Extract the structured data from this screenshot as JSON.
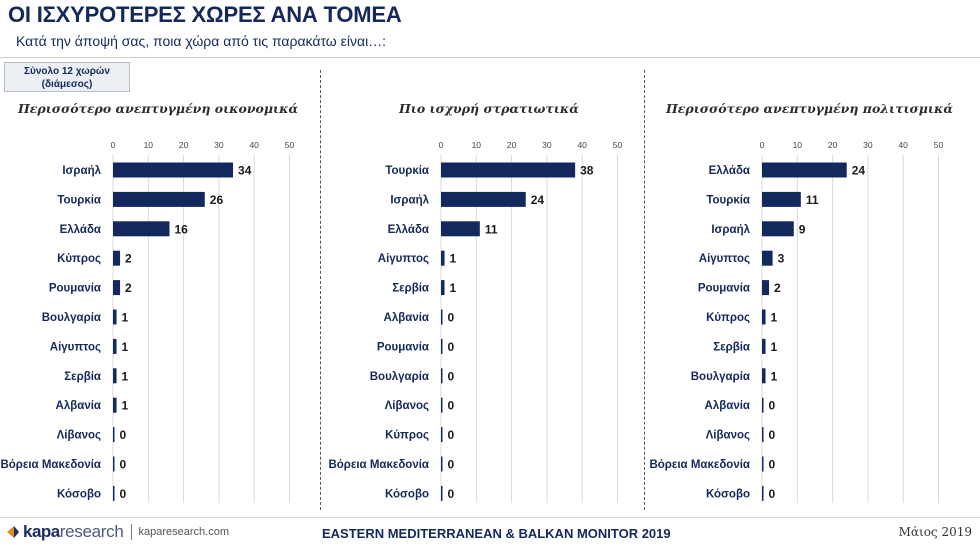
{
  "header": {
    "title": "ΟΙ ΙΣΧΥΡΟΤΕΡΕΣ ΧΩΡΕΣ ΑΝΑ ΤΟΜΕΑ",
    "subtitle": "Κατά την άποψή σας, ποια χώρα από τις παρακάτω είναι…:"
  },
  "base_box": {
    "line1": "Σύνολο 12 χωρών",
    "line2": "(διάμεσος)"
  },
  "colors": {
    "bar": "#13285c",
    "grid": "#d9d9d9",
    "title": "#14285a"
  },
  "chart_data": [
    {
      "type": "bar",
      "orientation": "horizontal",
      "title": "Περισσότερο ανεπτυγμένη οικονομικά",
      "xlim": [
        0,
        50
      ],
      "ticks": [
        0,
        10,
        20,
        30,
        40,
        50
      ],
      "grid": true,
      "categories": [
        "Ισραήλ",
        "Τουρκία",
        "Ελλάδα",
        "Κύπρος",
        "Ρουμανία",
        "Βουλγαρία",
        "Αίγυπτος",
        "Σερβία",
        "Αλβανία",
        "Λίβανος",
        "Βόρεια Μακεδονία",
        "Κόσοβο"
      ],
      "values": [
        34,
        26,
        16,
        2,
        2,
        1,
        1,
        1,
        1,
        0,
        0,
        0
      ]
    },
    {
      "type": "bar",
      "orientation": "horizontal",
      "title": "Πιο ισχυρή στρατιωτικά",
      "xlim": [
        0,
        50
      ],
      "ticks": [
        0,
        10,
        20,
        30,
        40,
        50
      ],
      "grid": true,
      "categories": [
        "Τουρκία",
        "Ισραήλ",
        "Ελλάδα",
        "Αίγυπτος",
        "Σερβία",
        "Αλβανία",
        "Ρουμανία",
        "Βουλγαρία",
        "Λίβανος",
        "Κύπρος",
        "Βόρεια Μακεδονία",
        "Κόσοβο"
      ],
      "values": [
        38,
        24,
        11,
        1,
        1,
        0,
        0,
        0,
        0,
        0,
        0,
        0
      ]
    },
    {
      "type": "bar",
      "orientation": "horizontal",
      "title": "Περισσότερο ανεπτυγμένη πολιτισμικά",
      "xlim": [
        0,
        50
      ],
      "ticks": [
        0,
        10,
        20,
        30,
        40,
        50
      ],
      "grid": true,
      "categories": [
        "Ελλάδα",
        "Τουρκία",
        "Ισραήλ",
        "Αίγυπτος",
        "Ρουμανία",
        "Κύπρος",
        "Σερβία",
        "Βουλγαρία",
        "Αλβανία",
        "Λίβανος",
        "Βόρεια Μακεδονία",
        "Κόσοβο"
      ],
      "values": [
        24,
        11,
        9,
        3,
        2,
        1,
        1,
        1,
        0,
        0,
        0,
        0
      ]
    }
  ],
  "footer": {
    "logo_kapa": "kapa",
    "logo_research": "research",
    "url": "kaparesearch.com",
    "center": "EASTERN MEDITERRANEAN & BALKAN MONITOR 2019",
    "date": "Μάιος 2019"
  }
}
